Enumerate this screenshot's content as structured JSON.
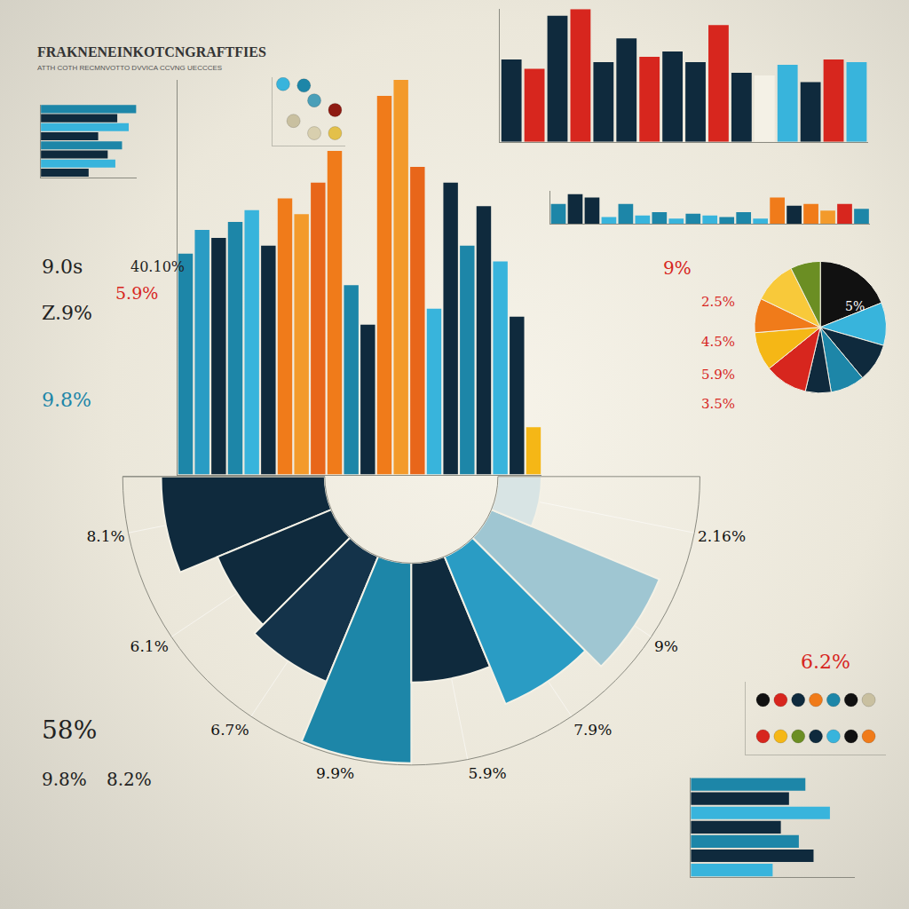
{
  "title": "FRAKNENEINKOTCNGRAFTFIES",
  "subtitle": "ATTH COTH RECMNVOTTO DVVICA CCVNG UECCCES",
  "texts": [
    "9.0s",
    "40.10%",
    "5.9%",
    "Z.9%",
    "9.8%",
    "58%",
    "9.8%",
    "8.2%",
    "9%",
    "2.5%",
    "4.5%",
    "5.9%",
    "3.5%",
    "5%",
    "6.2%"
  ],
  "chart_data": [
    {
      "type": "bar",
      "values": [
        56,
        62,
        60,
        64,
        67,
        58,
        70,
        66,
        74,
        82,
        48,
        38,
        96,
        100,
        78,
        42,
        74,
        58,
        68,
        54,
        40,
        12
      ],
      "colors": [
        "#1d86a8",
        "#2a9cc4",
        "#0f2a3d",
        "#1d86a8",
        "#38b4dc",
        "#0f2a3d",
        "#f07b1a",
        "#f39a2b",
        "#e8661a",
        "#f07b1a",
        "#1d86a8",
        "#0f2a3d",
        "#f07b1a",
        "#f39a2b",
        "#e8661a",
        "#38b4dc",
        "#0f2a3d",
        "#1d86a8",
        "#0f2a3d",
        "#38b4dc",
        "#0f2a3d",
        "#f5b716"
      ],
      "ylim": [
        0,
        100
      ],
      "tick_labels": false
    },
    {
      "type": "bar",
      "values": [
        62,
        55,
        95,
        100,
        60,
        78,
        64,
        68,
        60,
        88,
        52,
        50,
        58,
        45,
        62,
        60
      ],
      "colors": [
        "#0f2a3d",
        "#d7261e",
        "#0f2a3d",
        "#d7261e",
        "#0f2a3d",
        "#0f2a3d",
        "#d7261e",
        "#0f2a3d",
        "#0f2a3d",
        "#d7261e",
        "#0f2a3d",
        "#f4f1e6",
        "#38b4dc",
        "#0f2a3d",
        "#d7261e",
        "#38b4dc"
      ],
      "ylim": [
        0,
        100
      ],
      "tick_labels": false
    },
    {
      "type": "bar",
      "values": [
        60,
        90,
        80,
        20,
        60,
        25,
        35,
        15,
        30,
        25,
        20,
        35,
        15,
        80,
        55,
        60,
        40,
        60,
        45
      ],
      "colors": [
        "#1d86a8",
        "#0f2a3d",
        "#0f2a3d",
        "#38b4dc",
        "#1d86a8",
        "#38b4dc",
        "#1d86a8",
        "#38b4dc",
        "#1d86a8",
        "#38b4dc",
        "#1d86a8",
        "#1d86a8",
        "#38b4dc",
        "#f07b1a",
        "#0f2a3d",
        "#f07b1a",
        "#f39a2b",
        "#d7261e",
        "#1d86a8"
      ],
      "ylim": [
        0,
        100
      ],
      "tick_labels": false
    },
    {
      "type": "bar",
      "orientation": "horizontal",
      "values": [
        100,
        80,
        92,
        60,
        85,
        70,
        78,
        50
      ],
      "colors": [
        "#1d86a8",
        "#0f2a3d",
        "#38b4dc",
        "#0f2a3d",
        "#1d86a8",
        "#0f2a3d",
        "#38b4dc",
        "#0f2a3d"
      ],
      "xlim": [
        0,
        100
      ],
      "tick_labels": false
    },
    {
      "type": "bar",
      "orientation": "horizontal",
      "values": [
        70,
        60,
        85,
        55,
        66,
        75,
        50
      ],
      "colors": [
        "#1d86a8",
        "#0f2a3d",
        "#38b4dc",
        "#0f2a3d",
        "#1d86a8",
        "#0f2a3d",
        "#38b4dc"
      ],
      "xlim": [
        0,
        100
      ],
      "tick_labels": false
    },
    {
      "type": "scatter",
      "marker": "circle",
      "x": [
        1,
        3,
        4,
        6,
        2,
        4,
        6
      ],
      "values": [
        4.5,
        4.4,
        3.3,
        2.6,
        1.8,
        0.9,
        0.9
      ],
      "colors": [
        "#38b4dc",
        "#1d86a8",
        "#4a9fb8",
        "#8e1b12",
        "#c9c0a0",
        "#d8cfae",
        "#e3c04a"
      ],
      "xlim": [
        0,
        7
      ],
      "ylim": [
        0,
        5
      ],
      "tick_labels": false
    },
    {
      "type": "scatter",
      "marker": "circle",
      "x": [
        1,
        2,
        3,
        4,
        5,
        6,
        7,
        1,
        2,
        3,
        4,
        5,
        6,
        7
      ],
      "values": [
        3,
        3,
        3,
        3,
        3,
        3,
        3,
        1,
        1,
        1,
        1,
        1,
        1,
        1
      ],
      "colors": [
        "#111111",
        "#d7261e",
        "#0f2a3d",
        "#f07b1a",
        "#1d86a8",
        "#111111",
        "#c9c0a0",
        "#d7261e",
        "#f5b716",
        "#6b8e23",
        "#0f2a3d",
        "#38b4dc",
        "#111111",
        "#f07b1a"
      ],
      "xlim": [
        0,
        8
      ],
      "ylim": [
        0,
        4
      ],
      "tick_labels": false
    },
    {
      "type": "pie",
      "values": [
        18,
        10,
        9,
        8,
        6,
        10,
        9,
        8,
        10,
        7
      ],
      "colors": [
        "#111111",
        "#38b4dc",
        "#0f2a3d",
        "#1d86a8",
        "#0f2a3d",
        "#d7261e",
        "#f5b716",
        "#f07b1a",
        "#f8c93a",
        "#6b8e23"
      ]
    },
    {
      "type": "barpolar",
      "categories": [
        "8.1%",
        "6.1%",
        "6.7%",
        "9.9%",
        "5.9%",
        "7.9%",
        "9%",
        "2.16%"
      ],
      "values": [
        8.1,
        6.1,
        6.7,
        9.9,
        5.9,
        7.9,
        9,
        2.16
      ],
      "colors": [
        "#0f2a3d",
        "#0f2a3d",
        "#14334a",
        "#1d86a8",
        "#0f2a3d",
        "#2a9cc4",
        "#9fc6d2",
        "#d8e4e4"
      ],
      "ylim": [
        0,
        10
      ],
      "tick_labels": "x"
    }
  ]
}
